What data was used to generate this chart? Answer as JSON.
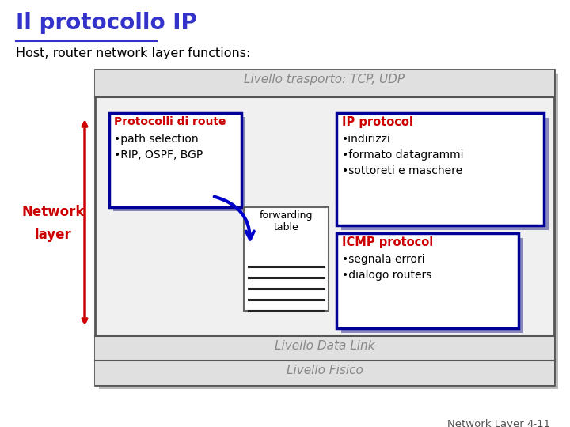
{
  "title": "Il protocollo IP",
  "subtitle": "Host, router network layer functions:",
  "transport_label": "Livello trasporto: TCP, UDP",
  "data_link_label": "Livello Data Link",
  "physical_label": "Livello Fisico",
  "network_layer_label_1": "Network",
  "network_layer_label_2": "layer",
  "route_box_title": "Protocolli di route",
  "route_box_bullets": [
    "•path selection",
    "•RIP, OSPF, BGP"
  ],
  "forwarding_label": "forwarding\ntable",
  "ip_box_title": "IP protocol",
  "ip_box_bullets": [
    "•indirizzi",
    "•formato datagrammi",
    "•sottoreti e maschere"
  ],
  "icmp_box_title": "ICMP protocol",
  "icmp_box_bullets": [
    "•segnala errori",
    "•dialogo routers"
  ],
  "footer_left": "Network Layer",
  "footer_right": "4-11",
  "bg_color": "#ffffff",
  "title_color": "#3333cc",
  "subtitle_color": "#000000",
  "transport_color": "#888888",
  "network_arrow_color": "#cc0000",
  "route_title_color": "#cc0000",
  "ip_title_color": "#cc0000",
  "icmp_title_color": "#cc0000",
  "box_text_color": "#000000",
  "outer_box_border": "#555555",
  "route_box_border": "#000099",
  "ip_box_border": "#000099",
  "icmp_box_border": "#000099",
  "arrow_color": "#0000cc",
  "footer_color": "#555555",
  "shadow_color": "#8888bb"
}
